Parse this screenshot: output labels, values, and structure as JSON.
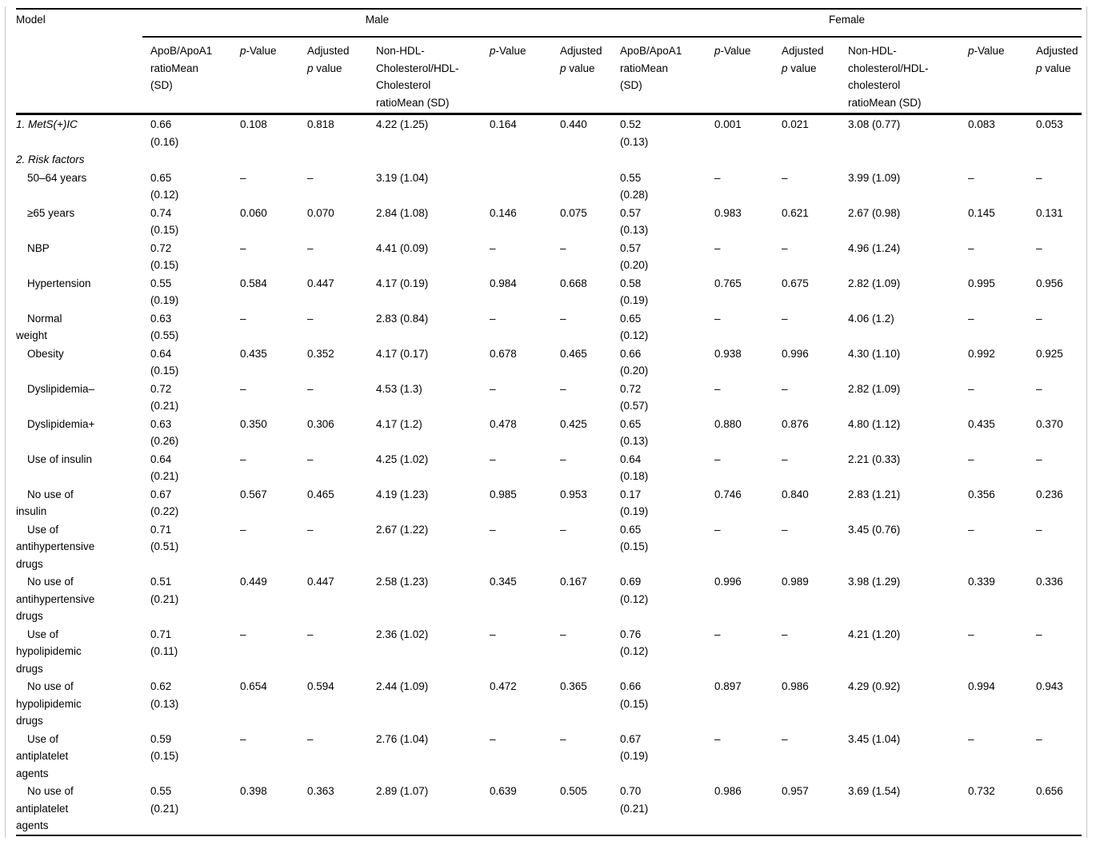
{
  "table": {
    "corner_label": "Model",
    "groups": [
      {
        "label": "Male"
      },
      {
        "label": "Female"
      }
    ],
    "columns": [
      {
        "pre": "ApoB/ApoA1\nratioMean\n(SD)",
        "it": "",
        "post": ""
      },
      {
        "pre": "",
        "it": "p",
        "post": "-Value"
      },
      {
        "pre": "Adjusted\n",
        "it": "p",
        "post": " value"
      },
      {
        "pre": "Non-HDL-\nCholesterol/HDL-\nCholesterol\nratioMean (SD)",
        "it": "",
        "post": ""
      },
      {
        "pre": "",
        "it": "p",
        "post": "-Value"
      },
      {
        "pre": "Adjusted\n",
        "it": "p",
        "post": " value"
      },
      {
        "pre": "ApoB/ApoA1\nratioMean\n(SD)",
        "it": "",
        "post": ""
      },
      {
        "pre": "",
        "it": "p",
        "post": "-Value"
      },
      {
        "pre": "Adjusted\n",
        "it": "p",
        "post": " value"
      },
      {
        "pre": "Non-HDL-\ncholesterol/HDL-\ncholesterol\nratioMean (SD)",
        "it": "",
        "post": ""
      },
      {
        "pre": "",
        "it": "p",
        "post": "-Value"
      },
      {
        "pre": "Adjusted\n",
        "it": "p",
        "post": " value"
      }
    ],
    "rows": [
      {
        "type": "section",
        "label": "1. MetS(+)IC",
        "values": [
          "0.66\n(0.16)",
          "0.108",
          "0.818",
          "4.22 (1.25)",
          "0.164",
          "0.440",
          "0.52\n(0.13)",
          "0.001",
          "0.021",
          "3.08 (0.77)",
          "0.083",
          "0.053"
        ]
      },
      {
        "type": "section",
        "label": "2. Risk factors",
        "values": [
          "",
          "",
          "",
          "",
          "",
          "",
          "",
          "",
          "",
          "",
          "",
          ""
        ]
      },
      {
        "type": "item",
        "label": "50–64 years",
        "values": [
          "0.65\n(0.12)",
          "–",
          "–",
          "3.19 (1.04)",
          "",
          "",
          "0.55\n(0.28)",
          "–",
          "–",
          "3.99 (1.09)",
          "–",
          "–"
        ]
      },
      {
        "type": "item",
        "label": "≥65 years",
        "values": [
          "0.74\n(0.15)",
          "0.060",
          "0.070",
          "2.84 (1.08)",
          "0.146",
          "0.075",
          "0.57\n(0.13)",
          "0.983",
          "0.621",
          "2.67 (0.98)",
          "0.145",
          "0.131"
        ]
      },
      {
        "type": "item",
        "label": "NBP",
        "values": [
          "0.72\n(0.15)",
          "–",
          "–",
          "4.41 (0.09)",
          "–",
          "–",
          "0.57\n(0.20)",
          "–",
          "–",
          "4.96 (1.24)",
          "–",
          "–"
        ]
      },
      {
        "type": "item",
        "label": "Hypertension",
        "values": [
          "0.55\n(0.19)",
          "0.584",
          "0.447",
          "4.17 (0.19)",
          "0.984",
          "0.668",
          "0.58\n(0.19)",
          "0.765",
          "0.675",
          "2.82 (1.09)",
          "0.995",
          "0.956"
        ]
      },
      {
        "type": "item",
        "label": "Normal\nweight",
        "values": [
          "0.63\n(0.55)",
          "–",
          "–",
          "2.83 (0.84)",
          "–",
          "–",
          "0.65\n(0.12)",
          "–",
          "–",
          "4.06 (1.2)",
          "–",
          "–"
        ]
      },
      {
        "type": "item",
        "label": "Obesity",
        "values": [
          "0.64\n(0.15)",
          "0.435",
          "0.352",
          "4.17 (0.17)",
          "0.678",
          "0.465",
          "0.66\n(0.20)",
          "0.938",
          "0.996",
          "4.30 (1.10)",
          "0.992",
          "0.925"
        ]
      },
      {
        "type": "item",
        "label": "Dyslipidemia–",
        "values": [
          "0.72\n(0.21)",
          "–",
          "–",
          "4.53 (1.3)",
          "–",
          "–",
          "0.72\n(0.57)",
          "–",
          "–",
          "2.82 (1.09)",
          "–",
          "–"
        ]
      },
      {
        "type": "item",
        "label": "Dyslipidemia+",
        "values": [
          "0.63\n(0.26)",
          "0.350",
          "0.306",
          "4.17 (1.2)",
          "0.478",
          "0.425",
          "0.65\n(0.13)",
          "0.880",
          "0.876",
          "4.80 (1.12)",
          "0.435",
          "0.370"
        ]
      },
      {
        "type": "item",
        "label": "Use of insulin",
        "values": [
          "0.64\n(0.21)",
          "–",
          "–",
          "4.25 (1.02)",
          "–",
          "–",
          "0.64\n(0.18)",
          "–",
          "–",
          "2.21 (0.33)",
          "–",
          "–"
        ]
      },
      {
        "type": "item",
        "label": "No use of\ninsulin",
        "values": [
          "0.67\n(0.22)",
          "0.567",
          "0.465",
          "4.19 (1.23)",
          "0.985",
          "0.953",
          "0.17\n(0.19)",
          "0.746",
          "0.840",
          "2.83 (1.21)",
          "0.356",
          "0.236"
        ]
      },
      {
        "type": "item",
        "label": "Use of\nantihypertensive\ndrugs",
        "values": [
          "0.71\n(0.51)",
          "–",
          "–",
          "2.67 (1.22)",
          "–",
          "–",
          "0.65\n(0.15)",
          "–",
          "–",
          "3.45 (0.76)",
          "–",
          "–"
        ]
      },
      {
        "type": "item",
        "label": "No use of\nantihypertensive\ndrugs",
        "values": [
          "0.51\n(0.21)",
          "0.449",
          "0.447",
          "2.58 (1.23)",
          "0.345",
          "0.167",
          "0.69\n(0.12)",
          "0.996",
          "0.989",
          "3.98 (1.29)",
          "0.339",
          "0.336"
        ]
      },
      {
        "type": "item",
        "label": "Use of\nhypolipidemic\ndrugs",
        "values": [
          "0.71\n(0.11)",
          "–",
          "–",
          "2.36 (1.02)",
          "–",
          "–",
          "0.76\n(0.12)",
          "–",
          "–",
          "4.21 (1.20)",
          "–",
          "–"
        ]
      },
      {
        "type": "item",
        "label": "No use of\nhypolipidemic\ndrugs",
        "values": [
          "0.62\n(0.13)",
          "0.654",
          "0.594",
          "2.44 (1.09)",
          "0.472",
          "0.365",
          "0.66\n(0.15)",
          "0.897",
          "0.986",
          "4.29 (0.92)",
          "0.994",
          "0.943"
        ]
      },
      {
        "type": "item",
        "label": "Use of\nantiplatelet\nagents",
        "values": [
          "0.59\n(0.15)",
          "–",
          "–",
          "2.76 (1.04)",
          "–",
          "–",
          "0.67\n(0.19)",
          "–",
          "–",
          "3.45 (1.04)",
          "–",
          "–"
        ]
      },
      {
        "type": "item",
        "label": "No use of\nantiplatelet\nagents",
        "values": [
          "0.55\n(0.21)",
          "0.398",
          "0.363",
          "2.89 (1.07)",
          "0.639",
          "0.505",
          "0.70\n(0.21)",
          "0.986",
          "0.957",
          "3.69 (1.54)",
          "0.732",
          "0.656"
        ]
      }
    ]
  }
}
